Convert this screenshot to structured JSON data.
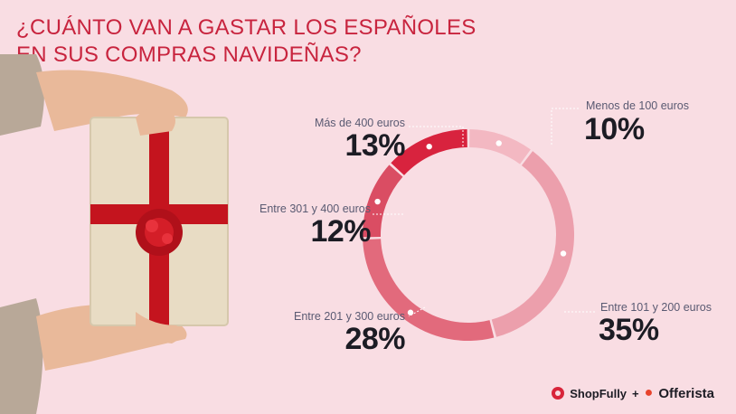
{
  "title_line1": "¿CUÁNTO VAN A GASTAR LOS ESPAÑOLES",
  "title_line2": "EN SUS COMPRAS NAVIDEÑAS?",
  "colors": {
    "background": "#f9dde3",
    "title": "#c8243e",
    "slice_lt100": "#f3b8c2",
    "slice_101_200": "#ec9fac",
    "slice_201_300": "#e26a7c",
    "slice_301_400": "#da4d63",
    "slice_gt400": "#d8233e"
  },
  "chart_data": {
    "type": "pie",
    "categories": [
      "Menos de 100 euros",
      "Entre 101 y 200 euros",
      "Entre 201 y 300 euros",
      "Entre 301 y 400 euros",
      "Más de 400 euros"
    ],
    "values": [
      10,
      35,
      28,
      12,
      13
    ],
    "labels": [
      "10%",
      "35%",
      "28%",
      "12%",
      "13%"
    ],
    "unit": "%"
  },
  "logos": {
    "shopfully": "ShopFully",
    "plus": "+",
    "offerista": "Offerista"
  }
}
